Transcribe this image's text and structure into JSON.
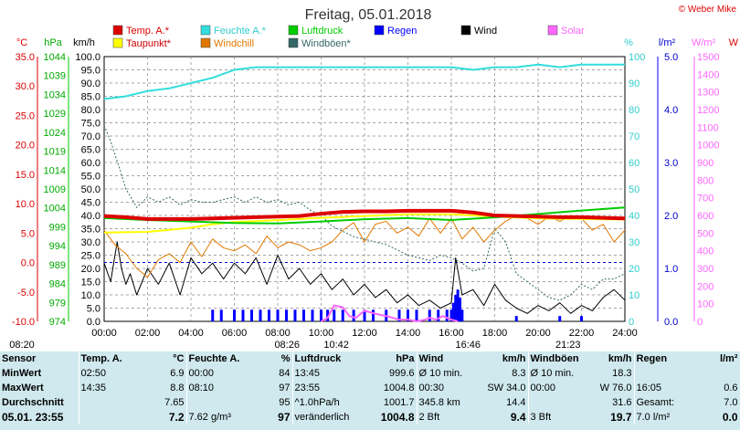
{
  "title": "Freitag, 05.01.2018",
  "copyright": "© Weber Mike",
  "legend": [
    {
      "label": "Temp. A.*",
      "color": "#dd0000"
    },
    {
      "label": "Feuchte A.*",
      "color": "#33dddd"
    },
    {
      "label": "Luftdruck",
      "color": "#00cc00"
    },
    {
      "label": "Regen",
      "color": "#0000ff"
    },
    {
      "label": "Wind",
      "color": "#000000"
    },
    {
      "label": "Solar",
      "color": "#ff66ff"
    },
    {
      "label": "Taupunkt*",
      "color": "#ffff00"
    },
    {
      "label": "Windchill",
      "color": "#e07800"
    },
    {
      "label": "Windböen*",
      "color": "#336666"
    }
  ],
  "units": {
    "temp": "°C",
    "pressure": "hPa",
    "wind": "km/h",
    "humidity": "%",
    "rain": "l/m²",
    "solar": "W/m²",
    "extra": "W"
  },
  "chart_data": {
    "type": "line",
    "x_ticks": [
      "00:00",
      "02:00",
      "04:00",
      "06:00",
      "08:00",
      "10:00",
      "12:00",
      "14:00",
      "16:00",
      "18:00",
      "20:00",
      "22:00",
      "24:00"
    ],
    "temp_axis": {
      "range": [
        -10,
        35
      ],
      "ticks": [
        "35.0",
        "30.0",
        "25.0",
        "20.0",
        "15.0",
        "10.0",
        "5.0",
        "0.0",
        "-5.0",
        "-10.0"
      ]
    },
    "pressure_axis": {
      "range": [
        974,
        1044
      ],
      "ticks": [
        "1044",
        "1039",
        "1034",
        "1029",
        "1024",
        "1019",
        "1014",
        "1009",
        "1004",
        "999",
        "994",
        "989",
        "984",
        "979",
        "974"
      ]
    },
    "wind_axis": {
      "range": [
        0,
        100
      ],
      "ticks": [
        "100.0",
        "95.0",
        "90.0",
        "85.0",
        "80.0",
        "75.0",
        "70.0",
        "65.0",
        "60.0",
        "55.0",
        "50.0",
        "45.0",
        "40.0",
        "35.0",
        "30.0",
        "25.0",
        "20.0",
        "15.0",
        "10.0",
        "5.0",
        "0.0"
      ]
    },
    "humidity_axis": {
      "range": [
        0,
        100
      ],
      "ticks": [
        "100",
        "90",
        "80",
        "70",
        "60",
        "50",
        "40",
        "30",
        "20",
        "10",
        "0"
      ]
    },
    "rain_axis": {
      "range": [
        0,
        5
      ],
      "ticks": [
        "5.0",
        "4.0",
        "3.0",
        "2.0",
        "1.0",
        "0.0"
      ]
    },
    "solar_axis": {
      "range": [
        0,
        1500
      ],
      "ticks": [
        "1500",
        "1400",
        "1300",
        "1200",
        "1100",
        "1000",
        "900",
        "800",
        "700",
        "600",
        "500",
        "400",
        "300",
        "200",
        "100",
        "0"
      ]
    },
    "series": [
      {
        "name": "Temp. A.*",
        "axis": "temp",
        "color": "#dd0000",
        "width": 4,
        "x": [
          0,
          1,
          2,
          3,
          4,
          5,
          6,
          7,
          8,
          9,
          10,
          11,
          12,
          13,
          14,
          15,
          16,
          17,
          18,
          19,
          20,
          21,
          22,
          23,
          24
        ],
        "y": [
          7.9,
          7.7,
          7.4,
          7.4,
          7.4,
          7.5,
          7.6,
          7.7,
          7.8,
          7.9,
          8.3,
          8.6,
          8.7,
          8.7,
          8.8,
          8.8,
          8.8,
          8.5,
          8.0,
          7.9,
          7.8,
          7.7,
          7.7,
          7.6,
          7.5
        ]
      },
      {
        "name": "Feuchte A.*",
        "axis": "humidity",
        "color": "#33dddd",
        "width": 2,
        "x": [
          0,
          1,
          2,
          3,
          4,
          4.5,
          5,
          6,
          7,
          8,
          9,
          10,
          11,
          12,
          13,
          14,
          15,
          16,
          17,
          18,
          19,
          20,
          21,
          22,
          23,
          24
        ],
        "y": [
          84,
          85,
          87,
          88,
          90,
          91,
          92,
          95,
          96,
          96,
          96,
          96,
          96,
          96,
          96,
          96,
          96,
          96,
          95,
          96,
          96,
          97,
          96,
          97,
          97,
          97
        ]
      },
      {
        "name": "Luftdruck",
        "axis": "pressure",
        "color": "#00cc00",
        "width": 2,
        "x": [
          0,
          2,
          4,
          6,
          8,
          10,
          12,
          14,
          16,
          18,
          20,
          22,
          24
        ],
        "y": [
          1001.3,
          1000.8,
          1000.4,
          1000.0,
          999.9,
          1000.4,
          1001.0,
          1001.3,
          1000.8,
          1001.5,
          1002.4,
          1003.3,
          1004.1
        ]
      },
      {
        "name": "Taupunkt*",
        "axis": "temp",
        "color": "#ffff00",
        "width": 2,
        "x": [
          0,
          2,
          4,
          5,
          6,
          8,
          10,
          12,
          14,
          16,
          18,
          20,
          22,
          24
        ],
        "y": [
          5.1,
          5.2,
          5.9,
          6.5,
          6.9,
          7.2,
          7.6,
          7.9,
          8.2,
          8.2,
          7.8,
          7.5,
          7.4,
          7.3
        ]
      },
      {
        "name": "Windchill",
        "axis": "temp",
        "color": "#e07800",
        "width": 1,
        "x": [
          0,
          0.5,
          1,
          1.5,
          2,
          2.5,
          3,
          3.5,
          4,
          4.5,
          5,
          5.5,
          6,
          6.5,
          7,
          7.5,
          8,
          8.5,
          9,
          9.5,
          10,
          10.5,
          11,
          11.5,
          12,
          12.5,
          13,
          13.5,
          14,
          14.5,
          15,
          15.5,
          16,
          16.5,
          17,
          17.5,
          18,
          18.5,
          19,
          19.5,
          20,
          20.5,
          21,
          21.5,
          22,
          22.5,
          23,
          23.5,
          24
        ],
        "y": [
          5.5,
          3.0,
          1.5,
          -1.0,
          -2.5,
          0.5,
          1.5,
          0.0,
          3.5,
          1.0,
          4.0,
          2.5,
          2.0,
          3.0,
          1.5,
          4.5,
          2.5,
          3.5,
          3.0,
          2.0,
          2.5,
          3.5,
          5.5,
          6.8,
          3.5,
          6.5,
          7.0,
          5.0,
          6.0,
          4.5,
          7.5,
          5.0,
          7.5,
          4.0,
          6.0,
          3.5,
          5.5,
          7.0,
          8.0,
          7.5,
          6.5,
          7.8,
          7.0,
          8.0,
          7.5,
          5.5,
          6.5,
          3.5,
          5.5
        ]
      },
      {
        "name": "Windböen*",
        "axis": "wind",
        "color": "#336666",
        "width": 1,
        "dash": "2,2",
        "x": [
          0,
          0.3,
          0.7,
          1,
          1.3,
          1.5,
          2,
          2.5,
          3,
          3.5,
          4,
          4.5,
          5,
          5.5,
          6,
          6.5,
          7,
          7.5,
          8,
          8.5,
          9,
          9.5,
          10,
          10.5,
          11,
          11.5,
          12,
          12.5,
          13,
          13.5,
          14,
          14.5,
          15,
          15.5,
          16,
          16.5,
          17,
          17.5,
          18,
          18.5,
          19,
          19.5,
          20,
          20.5,
          21,
          21.5,
          22,
          22.5,
          23,
          23.5,
          24
        ],
        "y": [
          74,
          68,
          58,
          50,
          46,
          43,
          47,
          45,
          47,
          44,
          46,
          45,
          45,
          46,
          47,
          45,
          47,
          45,
          46,
          44,
          45,
          42,
          40,
          36,
          34,
          32,
          31,
          30,
          29,
          27,
          25,
          24,
          23,
          25,
          24,
          22,
          19,
          20,
          35,
          30,
          18,
          15,
          12,
          9,
          8,
          10,
          14,
          12,
          16,
          16,
          18
        ]
      },
      {
        "name": "Wind",
        "axis": "wind",
        "color": "#000000",
        "width": 1,
        "x": [
          0,
          0.3,
          0.6,
          0.8,
          1,
          1.2,
          1.5,
          2,
          2.5,
          3,
          3.5,
          4,
          4.5,
          5,
          5.5,
          6,
          6.5,
          7,
          7.5,
          8,
          8.5,
          9,
          9.5,
          10,
          10.5,
          11,
          11.5,
          12,
          12.5,
          13,
          13.5,
          14,
          14.5,
          15,
          15.5,
          16,
          16.2,
          16.5,
          17,
          17.5,
          18,
          18.5,
          19,
          19.5,
          20,
          20.5,
          21,
          21.5,
          22,
          22.5,
          23,
          23.5,
          24
        ],
        "y": [
          22,
          15,
          30,
          20,
          14,
          18,
          10,
          20,
          14,
          22,
          10,
          24,
          18,
          22,
          16,
          22,
          18,
          24,
          14,
          25,
          16,
          20,
          14,
          18,
          12,
          16,
          10,
          14,
          9,
          12,
          7,
          10,
          6,
          8,
          5,
          7,
          24,
          10,
          12,
          6,
          14,
          8,
          5,
          3,
          6,
          4,
          7,
          3,
          6,
          4,
          9,
          12,
          8
        ]
      }
    ],
    "rain_bars": {
      "axis": "rain",
      "color": "#0000ff",
      "x": [
        5.0,
        5.4,
        6.0,
        6.4,
        6.8,
        7.2,
        7.6,
        8.0,
        8.4,
        8.8,
        9.2,
        9.6,
        10.0,
        10.3,
        10.6,
        11.0,
        11.5,
        12.0,
        12.4,
        13.0,
        13.6,
        14.0,
        14.4,
        15.0,
        15.4,
        15.8,
        16.0,
        16.1,
        16.2,
        16.3,
        16.4,
        16.5,
        19.0,
        21.0,
        22.0
      ],
      "y": [
        0.22,
        0.22,
        0.22,
        0.22,
        0.22,
        0.22,
        0.22,
        0.22,
        0.22,
        0.22,
        0.22,
        0.22,
        0.22,
        0.22,
        0.22,
        0.22,
        0.22,
        0.22,
        0.22,
        0.22,
        0.22,
        0.22,
        0.22,
        0.22,
        0.22,
        0.22,
        0.22,
        0.35,
        0.5,
        0.6,
        0.45,
        0.22,
        0.1,
        0.1,
        0.1
      ]
    },
    "solar_series": {
      "name": "Solar",
      "axis": "solar",
      "color": "#ff66ff",
      "x": [
        10.0,
        10.3,
        10.6,
        11.0,
        11.3,
        11.6,
        12.0,
        12.3,
        12.6,
        13.0,
        13.3,
        13.6,
        14.0,
        14.4,
        14.8,
        15.0,
        15.3,
        15.6,
        16.0,
        16.3
      ],
      "y": [
        0,
        20,
        90,
        80,
        30,
        20,
        60,
        50,
        40,
        30,
        20,
        10,
        10,
        0,
        10,
        20,
        10,
        30,
        10,
        0
      ]
    },
    "time_markers": [
      {
        "label": "08:20",
        "x": 0
      },
      {
        "label": "08:26",
        "x": 8.43
      },
      {
        "label": "10:42",
        "x": 10.7
      },
      {
        "label": "16:46",
        "x": 16.77
      },
      {
        "label": "21:23",
        "x": 21.38
      }
    ]
  },
  "stats": {
    "header": [
      "Sensor",
      "Temp. A.",
      "°C",
      "Feuchte A.",
      "%",
      "Luftdruck",
      "hPa",
      "Wind",
      "km/h",
      "Windböen",
      "km/h",
      "Regen",
      "l/m²"
    ],
    "rows": [
      [
        "MinWert",
        "02:50",
        "6.9",
        "00:00",
        "84",
        "13:45",
        "999.6",
        "Ø 10 min.",
        "8.3",
        "Ø 10 min.",
        "18.3",
        "",
        ""
      ],
      [
        "MaxWert",
        "14:35",
        "8.8",
        "08:10",
        "97",
        "23:55",
        "1004.8",
        "00:30",
        "SW 34.0",
        "00:00",
        "W 76.0",
        "16:05",
        "0.6"
      ],
      [
        "Durchschnitt",
        "",
        "7.65",
        "",
        "95",
        "^1.0hPa/h",
        "1001.7",
        "345.8 km",
        "14.4",
        "",
        "31.6",
        "Gesamt:",
        "7.0"
      ],
      [
        "05.01. 23:55",
        "",
        "7.2",
        "7.62 g/m³",
        "97",
        "veränderlich",
        "1004.8",
        "2 Bft",
        "9.4",
        "3 Bft",
        "19.7",
        "7.0 l/m²",
        "0.0"
      ]
    ]
  }
}
